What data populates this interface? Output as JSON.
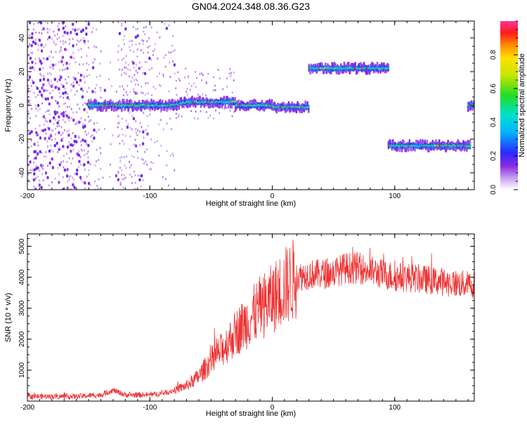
{
  "title": "GN04.2024.348.08.36.G23",
  "chart_data": [
    {
      "type": "heatmap",
      "xlabel": "Height of straight line (km)",
      "ylabel": "Frequency (Hz)",
      "xlim": [
        -200,
        165
      ],
      "ylim": [
        -50,
        50
      ],
      "xticks": [
        -200,
        -100,
        0,
        100
      ],
      "yticks": [
        -40,
        -20,
        0,
        20,
        40
      ],
      "colorbar": {
        "label": "Normalized spectral amplitude",
        "range": [
          0,
          1
        ],
        "ticks": [
          0.0,
          0.2,
          0.4,
          0.6,
          0.8
        ]
      },
      "tracks": [
        {
          "x": [
            -150,
            -60
          ],
          "freq": 0
        },
        {
          "x": [
            -60,
            -30
          ],
          "freq": 2
        },
        {
          "x": [
            -30,
            0
          ],
          "freq": 0
        },
        {
          "x": [
            0,
            30
          ],
          "freq": -1
        },
        {
          "x": [
            30,
            95
          ],
          "freq": 22
        },
        {
          "x": [
            95,
            162
          ],
          "freq": -24
        },
        {
          "x": [
            160,
            165
          ],
          "freq": 0
        }
      ]
    },
    {
      "type": "line",
      "xlabel": "Height of straight line (km)",
      "ylabel": "SNR (10 * v/v)",
      "xlim": [
        -200,
        165
      ],
      "ylim": [
        0,
        5400
      ],
      "xticks": [
        -200,
        -100,
        0,
        100
      ],
      "yticks": [
        1000,
        2000,
        3000,
        4000,
        5000
      ],
      "color": "#ee3333",
      "x": [
        -200,
        -180,
        -160,
        -140,
        -130,
        -120,
        -100,
        -90,
        -80,
        -70,
        -60,
        -50,
        -40,
        -30,
        -20,
        -10,
        0,
        10,
        20,
        30,
        40,
        50,
        60,
        70,
        80,
        90,
        100,
        110,
        120,
        130,
        140,
        150,
        165
      ],
      "y": [
        150,
        150,
        150,
        200,
        350,
        200,
        200,
        250,
        350,
        500,
        800,
        1300,
        1700,
        2200,
        2600,
        3000,
        3300,
        3700,
        4000,
        4100,
        4100,
        4150,
        4300,
        4300,
        4200,
        4100,
        4000,
        4000,
        3950,
        3900,
        3850,
        3800,
        3750
      ]
    }
  ]
}
